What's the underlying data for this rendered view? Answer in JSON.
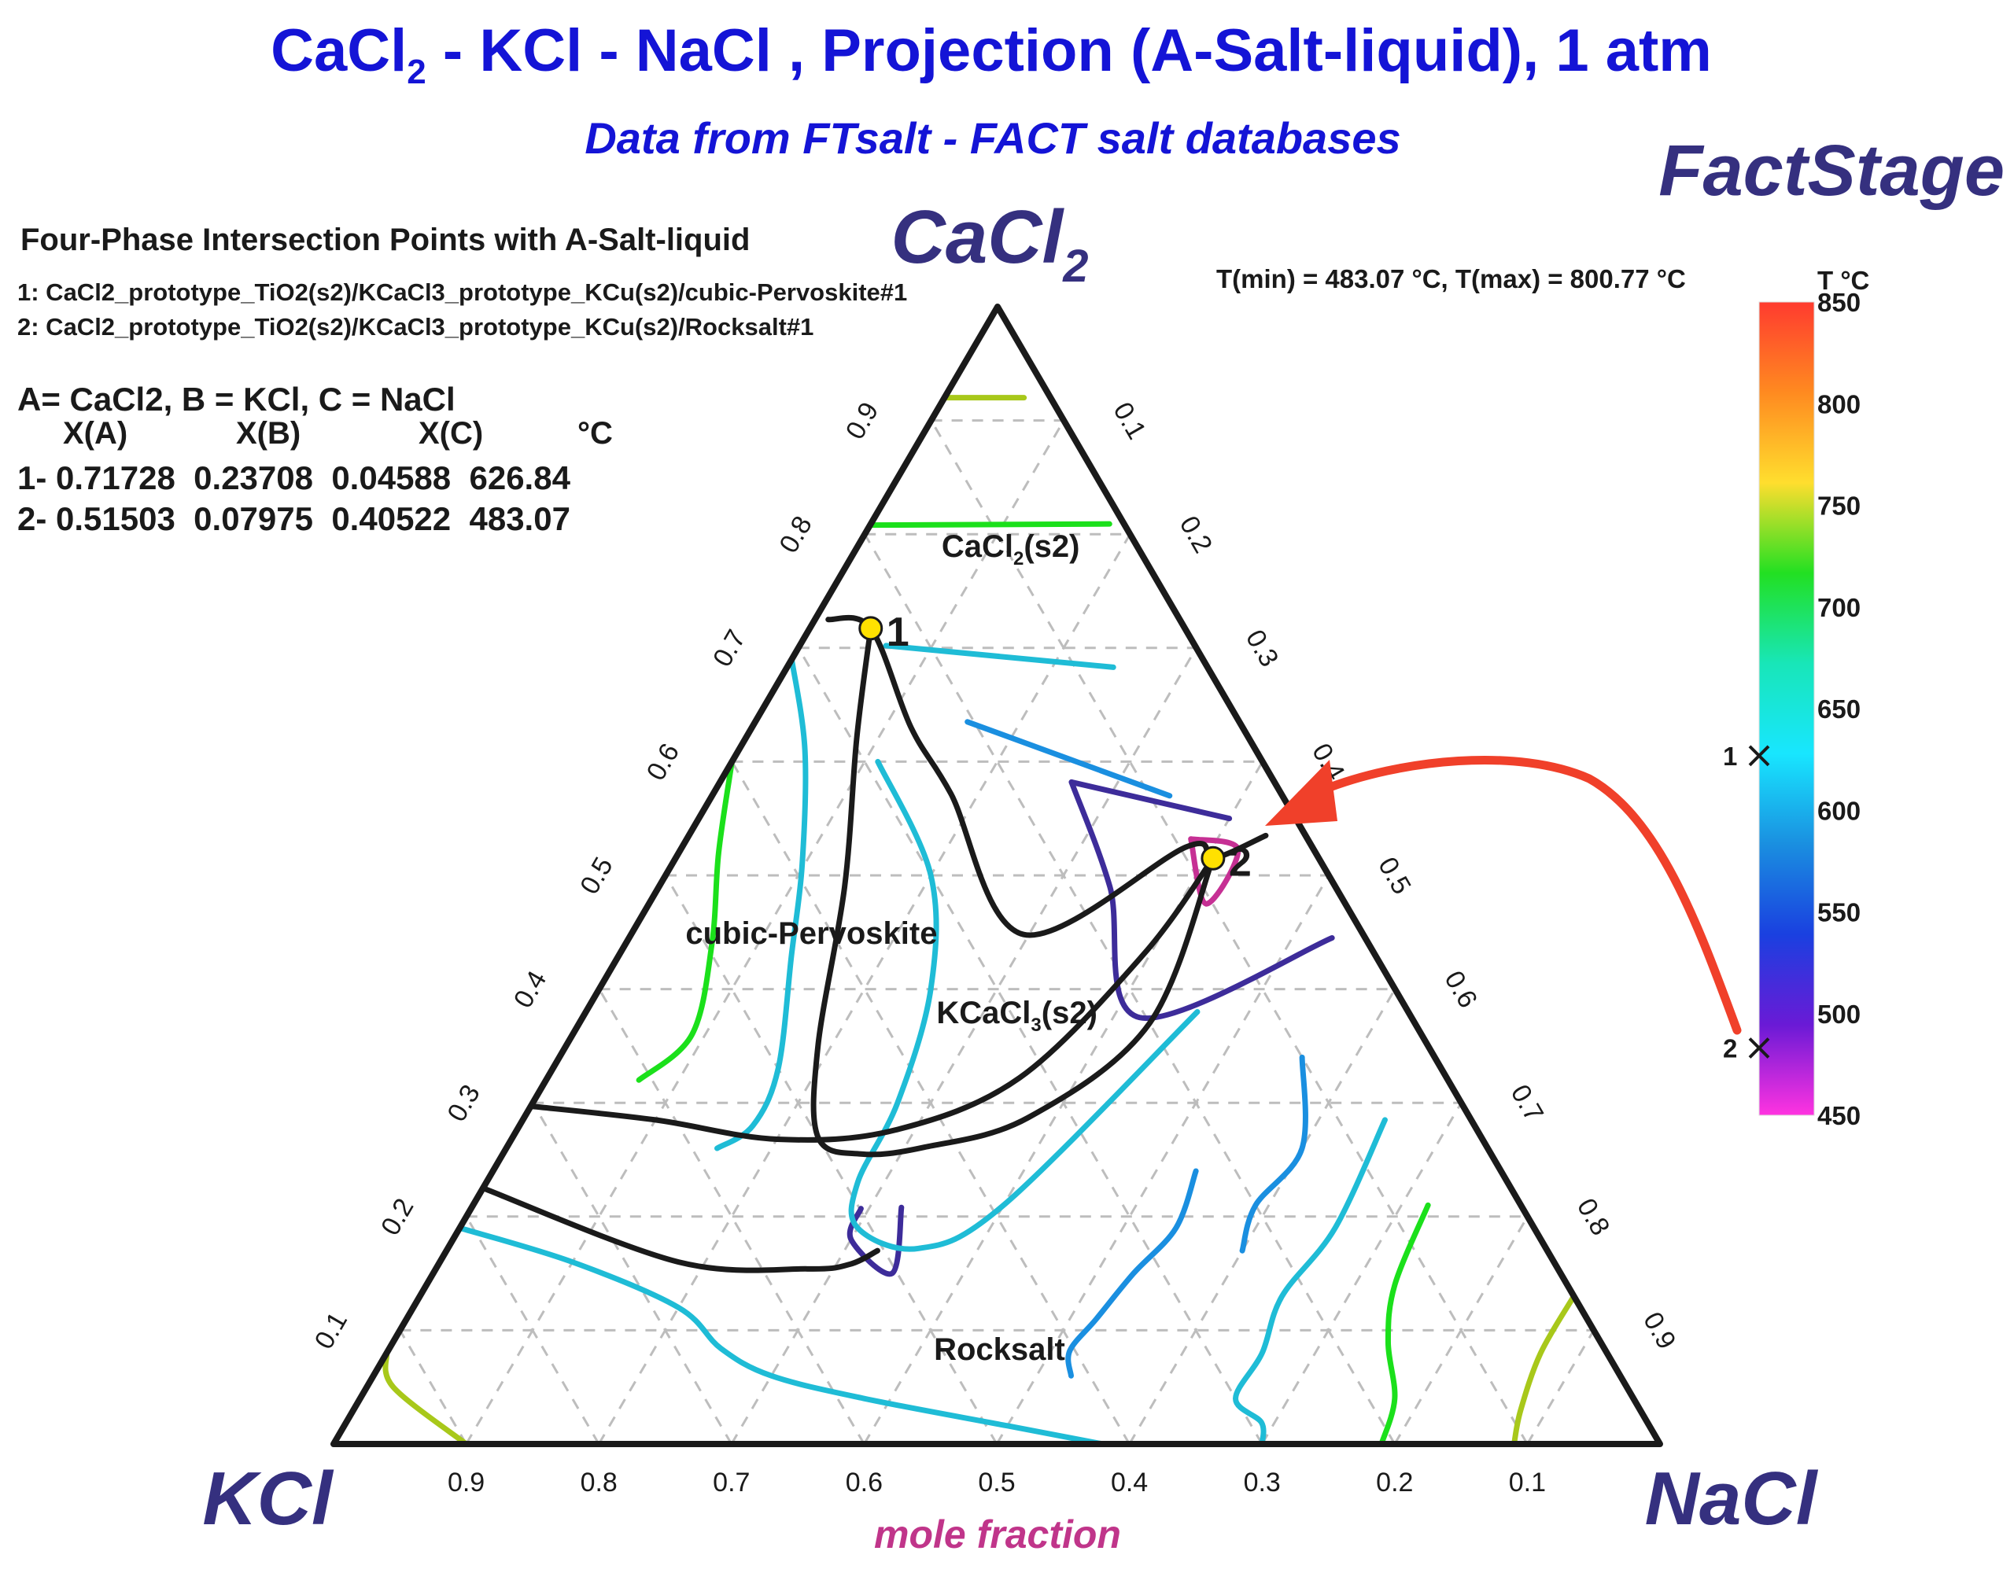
{
  "title": {
    "main_part1": "CaCl",
    "main_sub": "2",
    "main_part2": " - KCl - NaCl , Projection (A-Salt-liquid), 1 atm",
    "subtitle": "Data from FTsalt - FACT salt databases",
    "brand": "FactStage"
  },
  "info": {
    "heading": "Four-Phase Intersection Points with A-Salt-liquid",
    "point1_desc": "1:  CaCl2_prototype_TiO2(s2)/KCaCl3_prototype_KCu(s2)/cubic-Pervoskite#1",
    "point2_desc": "2:  CaCl2_prototype_TiO2(s2)/KCaCl3_prototype_KCu(s2)/Rocksalt#1",
    "legend_line": "A=  CaCl2,    B = KCl,   C = NaCl",
    "col_xa": "X(A)",
    "col_xb": "X(B)",
    "col_xc": "X(C)",
    "col_t": "°C",
    "row1": "1- 0.71728  0.23708  0.04588  626.84",
    "row2": "2- 0.51503  0.07975  0.40522  483.07",
    "trange": "T(min) = 483.07 °C,  T(max) = 800.77 °C"
  },
  "colors": {
    "c_black": "#1a1a1a",
    "c_green": "#1be01b",
    "c_cyan": "#1fbcd6",
    "c_blue": "#1a8fe0",
    "c_olive": "#a8c81a",
    "c_indigo": "#3d2c9a",
    "c_magenta": "#c63094",
    "c_arrow": "#f0402a",
    "c_point": "#ffe100"
  },
  "chart_data": {
    "type": "ternary",
    "title": "CaCl2 - KCl - NaCl , Projection (A-Salt-liquid), 1 atm",
    "vertices": {
      "top": {
        "name": "CaCl",
        "sub": "2"
      },
      "left": {
        "name": "KCl"
      },
      "right": {
        "name": "NaCl"
      }
    },
    "axis_label": "mole fraction",
    "left_ticks": [
      "0.1",
      "0.2",
      "0.3",
      "0.4",
      "0.5",
      "0.6",
      "0.7",
      "0.8",
      "0.9"
    ],
    "right_ticks": [
      "0.1",
      "0.2",
      "0.3",
      "0.4",
      "0.5",
      "0.6",
      "0.7",
      "0.8",
      "0.9"
    ],
    "bottom_ticks": [
      "0.9",
      "0.8",
      "0.7",
      "0.6",
      "0.5",
      "0.4",
      "0.3",
      "0.2",
      "0.1"
    ],
    "regions": [
      {
        "label": "CaCl",
        "sub": "2",
        "suffix": "(s2)",
        "a": 0.78,
        "c": 0.12
      },
      {
        "label": "cubic-Pervoskite",
        "sub": "",
        "suffix": "",
        "a": 0.44,
        "c": 0.14
      },
      {
        "label": "KCaCl",
        "sub": "3",
        "suffix": "(s2)",
        "a": 0.37,
        "c": 0.33
      },
      {
        "label": "Rocksalt",
        "sub": "",
        "suffix": "",
        "a": 0.074,
        "c": 0.465
      }
    ],
    "invariant_points": [
      {
        "id": "1",
        "a": 0.71728,
        "b": 0.23708,
        "c": 0.04588,
        "T": 626.84
      },
      {
        "id": "2",
        "a": 0.51503,
        "b": 0.07975,
        "c": 0.40522,
        "T": 483.07
      }
    ],
    "boundaries": [
      [
        [
          0.725,
          0.01
        ],
        [
          0.71728,
          0.04588
        ],
        [
          0.63,
          0.12
        ],
        [
          0.572,
          0.179
        ],
        [
          0.448,
          0.296
        ],
        [
          0.525,
          0.38
        ],
        [
          0.51503,
          0.40522
        ],
        [
          0.535,
          0.435
        ]
      ],
      [
        [
          0.71728,
          0.04588
        ],
        [
          0.62,
          0.084
        ],
        [
          0.49,
          0.14
        ],
        [
          0.35,
          0.19
        ],
        [
          0.27,
          0.23
        ],
        [
          0.255,
          0.27
        ],
        [
          0.261,
          0.315
        ],
        [
          0.287,
          0.38
        ],
        [
          0.37,
          0.43
        ],
        [
          0.51503,
          0.40522
        ]
      ],
      [
        [
          0.297,
          0.0
        ],
        [
          0.285,
          0.1
        ],
        [
          0.268,
          0.2
        ],
        [
          0.276,
          0.285
        ],
        [
          0.322,
          0.356
        ],
        [
          0.43,
          0.395
        ],
        [
          0.51503,
          0.40522
        ]
      ],
      [
        [
          0.225,
          0.0
        ],
        [
          0.16,
          0.18
        ],
        [
          0.154,
          0.28
        ],
        [
          0.158,
          0.31
        ],
        [
          0.17,
          0.325
        ]
      ]
    ],
    "isotherms": [
      {
        "color": "c_olive",
        "points": [
          [
            0.92,
            0.06
          ],
          [
            0.92,
            0.0
          ]
        ]
      },
      {
        "color": "c_green",
        "points": [
          [
            0.808,
            0.0
          ],
          [
            0.809,
            0.18
          ]
        ]
      },
      {
        "color": "c_cyan",
        "points": [
          [
            0.702,
            0.065
          ],
          [
            0.683,
            0.246
          ]
        ]
      },
      {
        "color": "c_blue",
        "points": [
          [
            0.635,
            0.16
          ],
          [
            0.57,
            0.345
          ]
        ]
      },
      {
        "color": "c_indigo",
        "points": [
          [
            0.582,
            0.265
          ],
          [
            0.55,
            0.4
          ]
        ]
      },
      {
        "color": "c_indigo",
        "points": [
          [
            0.582,
            0.265
          ],
          [
            0.49,
            0.34
          ],
          [
            0.375,
            0.42
          ],
          [
            0.445,
            0.53
          ]
        ]
      },
      {
        "color": "c_indigo",
        "points": [
          [
            0.207,
            0.294
          ],
          [
            0.18,
            0.3
          ],
          [
            0.15,
            0.346
          ],
          [
            0.208,
            0.324
          ]
        ]
      },
      {
        "color": "c_magenta",
        "points": [
          [
            0.532,
            0.38
          ],
          [
            0.523,
            0.42
          ],
          [
            0.475,
            0.42
          ],
          [
            0.532,
            0.38
          ]
        ]
      },
      {
        "color": "c_green",
        "points": [
          [
            0.6,
            0.0
          ],
          [
            0.52,
            0.03
          ],
          [
            0.44,
            0.065
          ],
          [
            0.36,
            0.09
          ],
          [
            0.32,
            0.07
          ]
        ]
      },
      {
        "color": "c_cyan",
        "points": [
          [
            0.69,
            0.0
          ],
          [
            0.61,
            0.05
          ],
          [
            0.51,
            0.098
          ],
          [
            0.43,
            0.13
          ],
          [
            0.33,
            0.17
          ],
          [
            0.28,
            0.176
          ],
          [
            0.26,
            0.159
          ]
        ]
      },
      {
        "color": "c_cyan",
        "points": [
          [
            0.6,
            0.11
          ],
          [
            0.5,
            0.2
          ],
          [
            0.4,
            0.25
          ],
          [
            0.3,
            0.275
          ],
          [
            0.23,
            0.28
          ],
          [
            0.19,
            0.3
          ],
          [
            0.172,
            0.355
          ],
          [
            0.21,
            0.4
          ],
          [
            0.38,
            0.461
          ]
        ]
      },
      {
        "color": "c_cyan",
        "points": [
          [
            0.19,
            0.0
          ],
          [
            0.16,
            0.1
          ],
          [
            0.12,
            0.2
          ],
          [
            0.084,
            0.25
          ],
          [
            0.06,
            0.3
          ],
          [
            0.04,
            0.38
          ],
          [
            0.016,
            0.5
          ],
          [
            0.0,
            0.58
          ]
        ]
      },
      {
        "color": "c_cyan",
        "points": [
          [
            0.285,
            0.65
          ],
          [
            0.19,
            0.66
          ],
          [
            0.13,
            0.65
          ],
          [
            0.08,
            0.66
          ],
          [
            0.04,
            0.66
          ],
          [
            0.019,
            0.69
          ],
          [
            0.0,
            0.7
          ]
        ]
      },
      {
        "color": "c_blue",
        "points": [
          [
            0.24,
            0.53
          ],
          [
            0.19,
            0.54
          ],
          [
            0.15,
            0.528
          ],
          [
            0.11,
            0.52
          ],
          [
            0.082,
            0.514
          ],
          [
            0.06,
            0.526
          ]
        ]
      },
      {
        "color": "c_blue",
        "points": [
          [
            0.34,
            0.56
          ],
          [
            0.26,
            0.6
          ],
          [
            0.21,
            0.59
          ],
          [
            0.17,
            0.6
          ]
        ]
      },
      {
        "color": "c_green",
        "points": [
          [
            0.21,
            0.72
          ],
          [
            0.14,
            0.73
          ],
          [
            0.09,
            0.75
          ],
          [
            0.04,
            0.78
          ],
          [
            0.0,
            0.79
          ]
        ]
      },
      {
        "color": "c_olive",
        "points": [
          [
            0.13,
            0.87
          ],
          [
            0.08,
            0.87
          ],
          [
            0.03,
            0.88
          ],
          [
            0.0,
            0.89
          ]
        ]
      },
      {
        "color": "c_olive",
        "points": [
          [
            0.08,
            0.0
          ],
          [
            0.05,
            0.02
          ],
          [
            0.0,
            0.1
          ]
        ]
      }
    ],
    "colorbar": {
      "label": "T °C",
      "min": 450,
      "max": 850,
      "ticks": [
        "850",
        "800",
        "750",
        "700",
        "650",
        "600",
        "550",
        "500",
        "450"
      ],
      "stops": [
        "#ff3b2f",
        "#ff8a20",
        "#ffde2e",
        "#22e022",
        "#18e6b8",
        "#18e6ff",
        "#1a8fe0",
        "#1a40e0",
        "#6a1ad6",
        "#ff33e0"
      ],
      "markers": [
        {
          "label": "1",
          "T": 626.84
        },
        {
          "label": "2",
          "T": 483.07
        }
      ]
    }
  }
}
